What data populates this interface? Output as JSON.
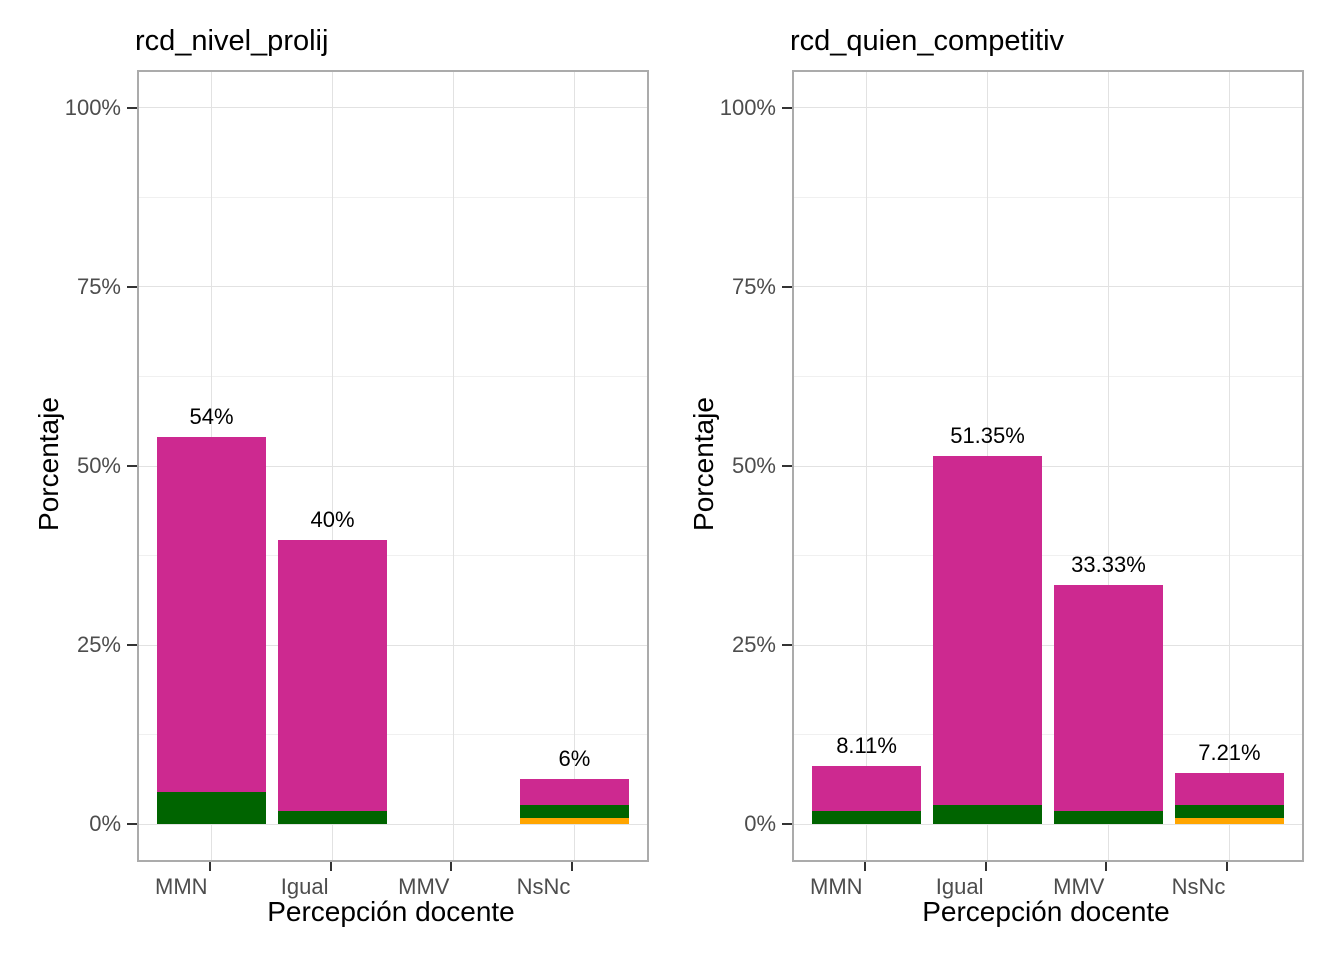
{
  "figure": {
    "background": "#FFFFFF",
    "panel_border_color": "#ABABAB",
    "grid_major_color": "#E2E2E2",
    "grid_minor_color": "#F0F0F0",
    "tick_color": "#333333",
    "tick_label_color": "#4D4D4D",
    "text_color": "#000000"
  },
  "chart_data": [
    {
      "type": "bar",
      "stacked": true,
      "title": "rcd_nivel_prolij",
      "xlabel": "Percepción docente",
      "ylabel": "Porcentaje",
      "categories": [
        "MMN",
        "Igual",
        "MMV",
        "NsNc"
      ],
      "series": [
        {
          "name": "orange-segment",
          "color": "#FFA500",
          "values": [
            0,
            0,
            0,
            0.9
          ]
        },
        {
          "name": "green-segment",
          "color": "#006400",
          "values": [
            4.5,
            1.8,
            0,
            1.8
          ]
        },
        {
          "name": "magenta-segment",
          "color": "#CD2990",
          "values": [
            49.55,
            37.84,
            0,
            3.61
          ]
        }
      ],
      "totals": [
        54.05,
        39.64,
        0,
        6.31
      ],
      "bar_labels": [
        "54%",
        "40%",
        "",
        "6%"
      ],
      "ylim": [
        -5,
        105
      ],
      "yticks": [
        {
          "value": 0,
          "label": "0%"
        },
        {
          "value": 25,
          "label": "25%"
        },
        {
          "value": 50,
          "label": "50%"
        },
        {
          "value": 75,
          "label": "75%"
        },
        {
          "value": 100,
          "label": "100%"
        }
      ],
      "yminor": [
        12.5,
        37.5,
        62.5,
        87.5
      ],
      "grid": true,
      "legend": "none"
    },
    {
      "type": "bar",
      "stacked": true,
      "title": "rcd_quien_competitiv",
      "xlabel": "Percepción docente",
      "ylabel": "Porcentaje",
      "categories": [
        "MMN",
        "Igual",
        "MMV",
        "NsNc"
      ],
      "series": [
        {
          "name": "orange-segment",
          "color": "#FFA500",
          "values": [
            0,
            0,
            0,
            0.9
          ]
        },
        {
          "name": "green-segment",
          "color": "#006400",
          "values": [
            1.8,
            2.7,
            1.8,
            1.8
          ]
        },
        {
          "name": "magenta-segment",
          "color": "#CD2990",
          "values": [
            6.31,
            48.65,
            31.53,
            4.51
          ]
        }
      ],
      "totals": [
        8.11,
        51.35,
        33.33,
        7.21
      ],
      "bar_labels": [
        "8.11%",
        "51.35%",
        "33.33%",
        "7.21%"
      ],
      "ylim": [
        -5,
        105
      ],
      "yticks": [
        {
          "value": 0,
          "label": "0%"
        },
        {
          "value": 25,
          "label": "25%"
        },
        {
          "value": 50,
          "label": "50%"
        },
        {
          "value": 75,
          "label": "75%"
        },
        {
          "value": 100,
          "label": "100%"
        }
      ],
      "yminor": [
        12.5,
        37.5,
        62.5,
        87.5
      ],
      "grid": true,
      "legend": "none"
    }
  ]
}
